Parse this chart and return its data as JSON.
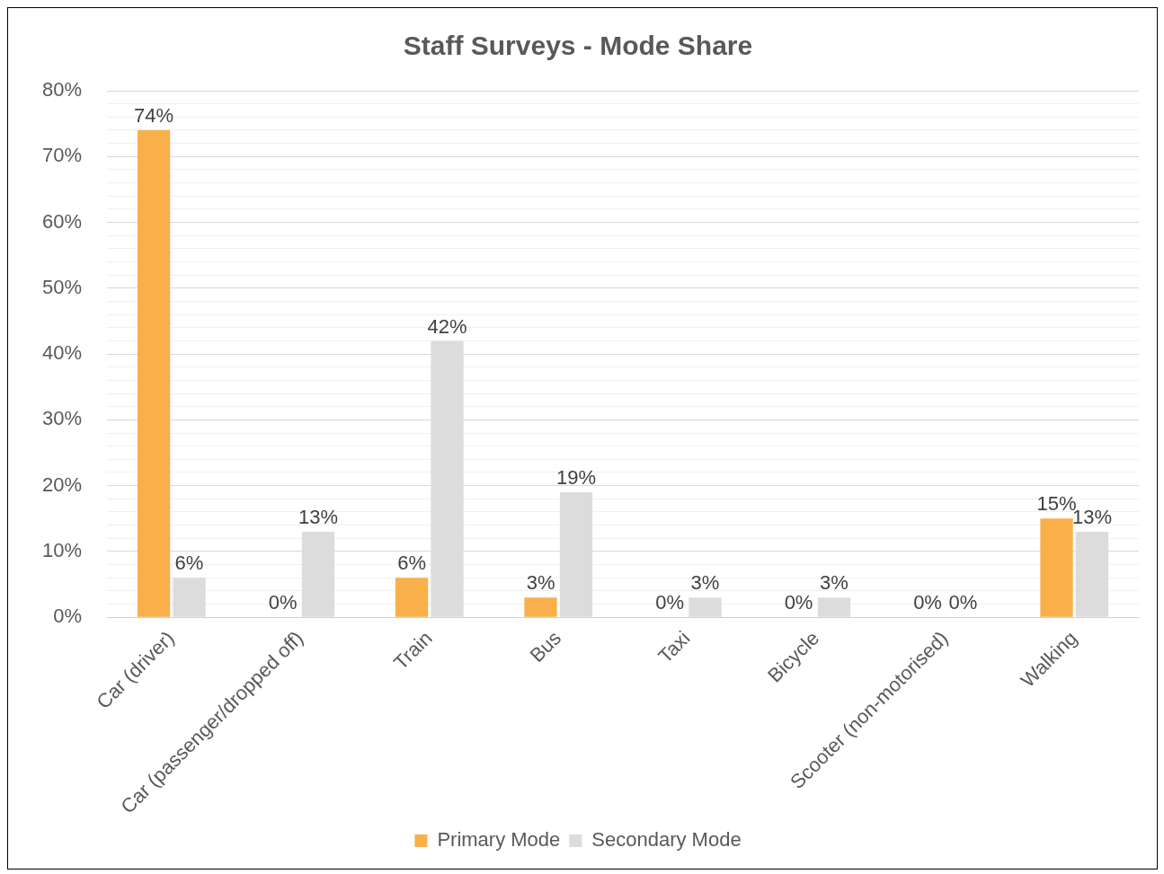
{
  "chart_data": {
    "type": "bar",
    "title": "Staff Surveys - Mode Share",
    "categories": [
      "Car (driver)",
      "Car (passenger/dropped off)",
      "Train",
      "Bus",
      "Taxi",
      "Bicycle",
      "Scooter (non-motorised)",
      "Walking"
    ],
    "series": [
      {
        "name": "Primary Mode",
        "color": "#f9b04a",
        "values": [
          74,
          0,
          6,
          3,
          0,
          0,
          0,
          15
        ],
        "value_labels": [
          "74%",
          "0%",
          "6%",
          "3%",
          "0%",
          "0%",
          "0%",
          "15%"
        ]
      },
      {
        "name": "Secondary Mode",
        "color": "#dcdcdd",
        "values": [
          6,
          13,
          42,
          19,
          3,
          3,
          0,
          13
        ],
        "value_labels": [
          "6%",
          "13%",
          "42%",
          "19%",
          "3%",
          "3%",
          "0%",
          "13%"
        ]
      }
    ],
    "ylim": [
      0,
      80
    ],
    "yticks": [
      {
        "value": 0,
        "label": "0%"
      },
      {
        "value": 2,
        "label": null
      },
      {
        "value": 4,
        "label": null
      },
      {
        "value": 6,
        "label": null
      },
      {
        "value": 8,
        "label": null
      },
      {
        "value": 10,
        "label": "10%"
      },
      {
        "value": 12,
        "label": null
      },
      {
        "value": 14,
        "label": null
      },
      {
        "value": 16,
        "label": null
      },
      {
        "value": 18,
        "label": null
      },
      {
        "value": 20,
        "label": "20%"
      },
      {
        "value": 22,
        "label": null
      },
      {
        "value": 24,
        "label": null
      },
      {
        "value": 26,
        "label": null
      },
      {
        "value": 28,
        "label": null
      },
      {
        "value": 30,
        "label": "30%"
      },
      {
        "value": 32,
        "label": null
      },
      {
        "value": 34,
        "label": null
      },
      {
        "value": 36,
        "label": null
      },
      {
        "value": 38,
        "label": null
      },
      {
        "value": 40,
        "label": "40%"
      },
      {
        "value": 42,
        "label": null
      },
      {
        "value": 44,
        "label": null
      },
      {
        "value": 46,
        "label": null
      },
      {
        "value": 48,
        "label": null
      },
      {
        "value": 50,
        "label": "50%"
      },
      {
        "value": 52,
        "label": null
      },
      {
        "value": 54,
        "label": null
      },
      {
        "value": 56,
        "label": null
      },
      {
        "value": 58,
        "label": null
      },
      {
        "value": 60,
        "label": "60%"
      },
      {
        "value": 62,
        "label": null
      },
      {
        "value": 64,
        "label": null
      },
      {
        "value": 66,
        "label": null
      },
      {
        "value": 68,
        "label": null
      },
      {
        "value": 70,
        "label": "70%"
      },
      {
        "value": 72,
        "label": null
      },
      {
        "value": 74,
        "label": null
      },
      {
        "value": 76,
        "label": null
      },
      {
        "value": 78,
        "label": null
      },
      {
        "value": 80,
        "label": "80%"
      }
    ],
    "grid": "y",
    "legend": "bottom"
  }
}
